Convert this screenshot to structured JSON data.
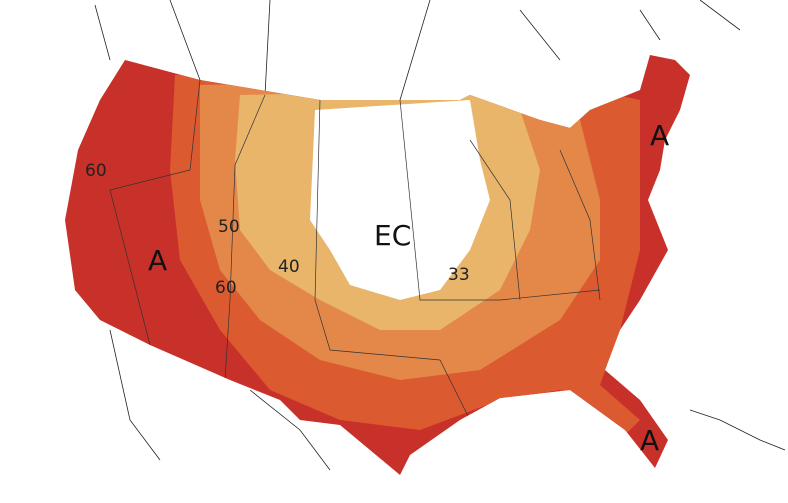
{
  "map": {
    "labels": [
      {
        "text": "60"
      },
      {
        "text": "50"
      },
      {
        "text": "40"
      },
      {
        "text": "33"
      },
      {
        "text": "60"
      },
      {
        "text": "EC"
      },
      {
        "text": "A"
      },
      {
        "text": "A"
      },
      {
        "text": "A"
      }
    ]
  }
}
